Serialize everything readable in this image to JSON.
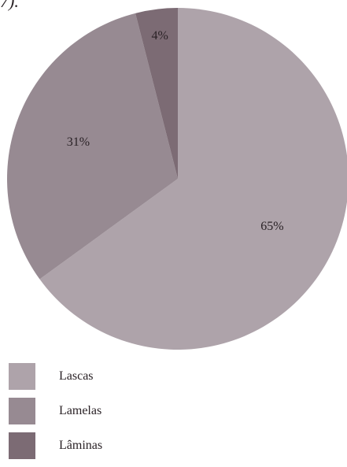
{
  "caption_fragment": "7).",
  "chart_data": {
    "type": "pie",
    "title": "",
    "slices": [
      {
        "label": "Lascas",
        "value": 65,
        "display": "65%",
        "color": "#aea3aa"
      },
      {
        "label": "Lamelas",
        "value": 31,
        "display": "31%",
        "color": "#978a92"
      },
      {
        "label": "Lâminas",
        "value": 4,
        "display": "4%",
        "color": "#7c6b74"
      }
    ],
    "start_direction": "top",
    "slice_order": "clockwise",
    "legend_position": "bottom-left"
  }
}
